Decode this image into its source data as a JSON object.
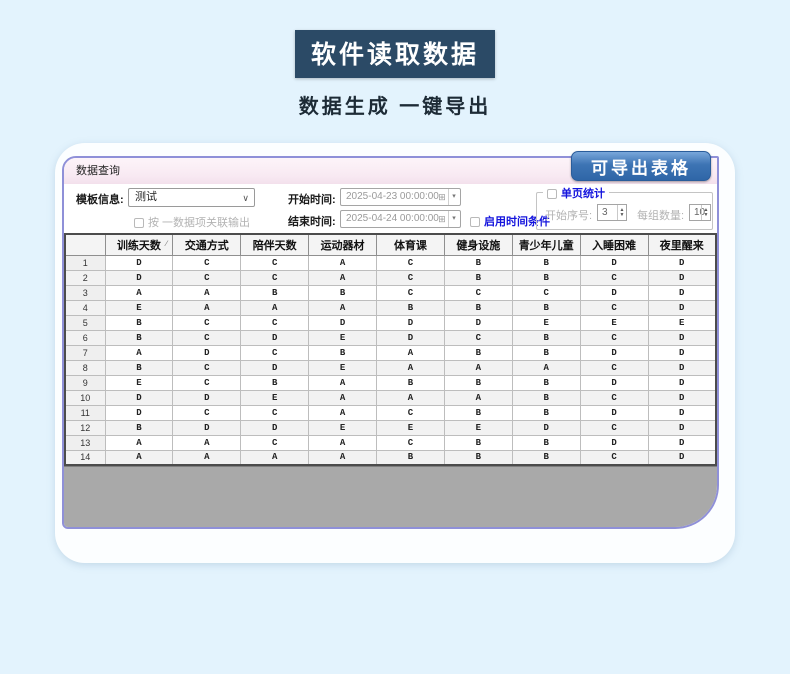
{
  "page": {
    "title_banner": "软件读取数据",
    "subtitle": "数据生成  一键导出",
    "export_badge": "可导出表格"
  },
  "colors": {
    "page_bg": "#e3f3fd",
    "banner_bg": "#2b4a66",
    "badge_top": "#79a7da",
    "badge_bottom": "#2f66a7",
    "window_border": "#8f90d8",
    "titlebar_pink": "#f8e9f2",
    "blue_label": "#1414dd",
    "empty_area_gray": "#a9a9a9"
  },
  "window": {
    "title": "数据查询",
    "form": {
      "template_label": "模板信息:",
      "template_value": "测试",
      "link_output_label": "按 一数据项关联输出",
      "start_time_label": "开始时间:",
      "start_time_value": "2025-04-23 00:00:00",
      "end_time_label": "结束时间:",
      "end_time_value": "2025-04-24 00:00:00",
      "enable_time_label": "启用时间条件",
      "single_page_label": "单页统计",
      "start_index_label": "开始序号:",
      "start_index_value": "3",
      "group_count_label": "每组数量:",
      "group_count_value": "10"
    },
    "icons": {
      "select_chevron": "∨",
      "datetime_grid": "⊞",
      "dropdown_arrow": "▾",
      "spin_up": "▲",
      "spin_down": "▼",
      "sort_mark": "∕"
    },
    "table": {
      "headers": [
        "",
        "训练天数",
        "交通方式",
        "陪伴天数",
        "运动器材",
        "体育课",
        "健身设施",
        "青少年儿童",
        "入睡困难",
        "夜里醒来"
      ],
      "rows": [
        {
          "n": "1",
          "cells": [
            "D",
            "C",
            "C",
            "A",
            "C",
            "B",
            "B",
            "D",
            "D"
          ]
        },
        {
          "n": "2",
          "cells": [
            "D",
            "C",
            "C",
            "A",
            "C",
            "B",
            "B",
            "C",
            "D"
          ]
        },
        {
          "n": "3",
          "cells": [
            "A",
            "A",
            "B",
            "B",
            "C",
            "C",
            "C",
            "D",
            "D"
          ]
        },
        {
          "n": "4",
          "cells": [
            "E",
            "A",
            "A",
            "A",
            "B",
            "B",
            "B",
            "C",
            "D"
          ]
        },
        {
          "n": "5",
          "cells": [
            "B",
            "C",
            "C",
            "D",
            "D",
            "D",
            "E",
            "E",
            "E"
          ]
        },
        {
          "n": "6",
          "cells": [
            "B",
            "C",
            "D",
            "E",
            "D",
            "C",
            "B",
            "C",
            "D"
          ]
        },
        {
          "n": "7",
          "cells": [
            "A",
            "D",
            "C",
            "B",
            "A",
            "B",
            "B",
            "D",
            "D"
          ]
        },
        {
          "n": "8",
          "cells": [
            "B",
            "C",
            "D",
            "E",
            "A",
            "A",
            "A",
            "C",
            "D"
          ]
        },
        {
          "n": "9",
          "cells": [
            "E",
            "C",
            "B",
            "A",
            "B",
            "B",
            "B",
            "D",
            "D"
          ]
        },
        {
          "n": "10",
          "cells": [
            "D",
            "D",
            "E",
            "A",
            "A",
            "A",
            "B",
            "C",
            "D"
          ]
        },
        {
          "n": "11",
          "cells": [
            "D",
            "C",
            "C",
            "A",
            "C",
            "B",
            "B",
            "D",
            "D"
          ]
        },
        {
          "n": "12",
          "cells": [
            "B",
            "D",
            "D",
            "E",
            "E",
            "E",
            "D",
            "C",
            "D"
          ]
        },
        {
          "n": "13",
          "cells": [
            "A",
            "A",
            "C",
            "A",
            "C",
            "B",
            "B",
            "D",
            "D"
          ]
        },
        {
          "n": "14",
          "cells": [
            "A",
            "A",
            "A",
            "A",
            "B",
            "B",
            "B",
            "C",
            "D"
          ]
        }
      ]
    }
  }
}
